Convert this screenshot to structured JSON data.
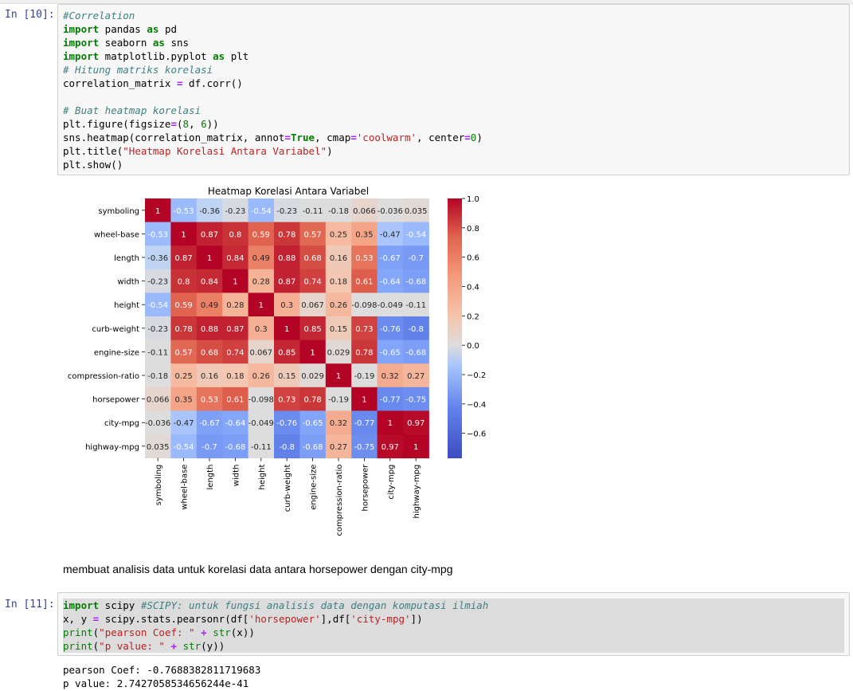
{
  "cells": [
    {
      "prompt": "In [10]:",
      "lines": [
        [
          {
            "t": "#Correlation",
            "c": "cm"
          }
        ],
        [
          {
            "t": "import",
            "c": "kw"
          },
          {
            "t": " pandas "
          },
          {
            "t": "as",
            "c": "kw"
          },
          {
            "t": " pd"
          }
        ],
        [
          {
            "t": "import",
            "c": "kw"
          },
          {
            "t": " seaborn "
          },
          {
            "t": "as",
            "c": "kw"
          },
          {
            "t": " sns"
          }
        ],
        [
          {
            "t": "import",
            "c": "kw"
          },
          {
            "t": " matplotlib.pyplot "
          },
          {
            "t": "as",
            "c": "kw"
          },
          {
            "t": " plt"
          }
        ],
        [
          {
            "t": "# Hitung matriks korelasi",
            "c": "cm"
          }
        ],
        [
          {
            "t": "correlation_matrix "
          },
          {
            "t": "=",
            "c": "op"
          },
          {
            "t": " df.corr()"
          }
        ],
        [],
        [
          {
            "t": "# Buat heatmap korelasi",
            "c": "cm"
          }
        ],
        [
          {
            "t": "plt.figure(figsize"
          },
          {
            "t": "=",
            "c": "op"
          },
          {
            "t": "("
          },
          {
            "t": "8",
            "c": "nm"
          },
          {
            "t": ", "
          },
          {
            "t": "6",
            "c": "nm"
          },
          {
            "t": "))"
          }
        ],
        [
          {
            "t": "sns.heatmap(correlation_matrix, annot"
          },
          {
            "t": "=",
            "c": "op"
          },
          {
            "t": "True",
            "c": "kw"
          },
          {
            "t": ", cmap"
          },
          {
            "t": "=",
            "c": "op"
          },
          {
            "t": "'coolwarm'",
            "c": "st"
          },
          {
            "t": ", center"
          },
          {
            "t": "=",
            "c": "op"
          },
          {
            "t": "0",
            "c": "nm"
          },
          {
            "t": ")"
          }
        ],
        [
          {
            "t": "plt.title("
          },
          {
            "t": "\"Heatmap Korelasi Antara Variabel\"",
            "c": "st"
          },
          {
            "t": ")"
          }
        ],
        [
          {
            "t": "plt.show()"
          }
        ]
      ]
    },
    {
      "prompt": "In [11]:",
      "lines": [
        [
          {
            "t": "import",
            "c": "kw"
          },
          {
            "t": " scipy "
          },
          {
            "t": "#SCIPY: untuk fungsi analisis data dengan komputasi ilmiah",
            "c": "cm"
          }
        ],
        [
          {
            "t": "x, y "
          },
          {
            "t": "=",
            "c": "op"
          },
          {
            "t": " scipy.stats.pearsonr(df["
          },
          {
            "t": "'horsepower'",
            "c": "st"
          },
          {
            "t": "],df["
          },
          {
            "t": "'city-mpg'",
            "c": "st"
          },
          {
            "t": "])"
          }
        ],
        [
          {
            "t": "print",
            "c": "nm"
          },
          {
            "t": "("
          },
          {
            "t": "\"pearson Coef: \"",
            "c": "st"
          },
          {
            "t": " "
          },
          {
            "t": "+",
            "c": "op"
          },
          {
            "t": " "
          },
          {
            "t": "str",
            "c": "nm"
          },
          {
            "t": "(x))"
          }
        ],
        [
          {
            "t": "print",
            "c": "nm"
          },
          {
            "t": "("
          },
          {
            "t": "\"p value: \"",
            "c": "st"
          },
          {
            "t": " "
          },
          {
            "t": "+",
            "c": "op"
          },
          {
            "t": " "
          },
          {
            "t": "str",
            "c": "nm"
          },
          {
            "t": "(y))"
          }
        ]
      ]
    }
  ],
  "markdown": "membuat analisis data untuk korelasi data antara horsepower dengan city-mpg",
  "output": {
    "line1": "pearson Coef: -0.7688382811719683",
    "line2": "p value: 2.7427058534656244e-41"
  },
  "chart_data": {
    "type": "heatmap",
    "title": "Heatmap Korelasi Antara Variabel",
    "colormap": "coolwarm",
    "center": 0,
    "colorbar_ticks": [
      "1.0",
      "0.8",
      "0.6",
      "0.4",
      "0.2",
      "0.0",
      "−0.2",
      "−0.4",
      "−0.6"
    ],
    "colorbar_range": [
      -0.77,
      1.0
    ],
    "variables": [
      "symboling",
      "wheel-base",
      "length",
      "width",
      "height",
      "curb-weight",
      "engine-size",
      "compression-ratio",
      "horsepower",
      "city-mpg",
      "highway-mpg"
    ],
    "annotations": [
      [
        "1",
        "-0.53",
        "-0.36",
        "-0.23",
        "-0.54",
        "-0.23",
        "-0.11",
        "-0.18",
        "0.066",
        "-0.036",
        "0.035"
      ],
      [
        "-0.53",
        "1",
        "0.87",
        "0.8",
        "0.59",
        "0.78",
        "0.57",
        "0.25",
        "0.35",
        "-0.47",
        "-0.54"
      ],
      [
        "-0.36",
        "0.87",
        "1",
        "0.84",
        "0.49",
        "0.88",
        "0.68",
        "0.16",
        "0.53",
        "-0.67",
        "-0.7"
      ],
      [
        "-0.23",
        "0.8",
        "0.84",
        "1",
        "0.28",
        "0.87",
        "0.74",
        "0.18",
        "0.61",
        "-0.64",
        "-0.68"
      ],
      [
        "-0.54",
        "0.59",
        "0.49",
        "0.28",
        "1",
        "0.3",
        "0.067",
        "0.26",
        "-0.098",
        "-0.049",
        "-0.11"
      ],
      [
        "-0.23",
        "0.78",
        "0.88",
        "0.87",
        "0.3",
        "1",
        "0.85",
        "0.15",
        "0.73",
        "-0.76",
        "-0.8"
      ],
      [
        "-0.11",
        "0.57",
        "0.68",
        "0.74",
        "0.067",
        "0.85",
        "1",
        "0.029",
        "0.78",
        "-0.65",
        "-0.68"
      ],
      [
        "-0.18",
        "0.25",
        "0.16",
        "0.18",
        "0.26",
        "0.15",
        "0.029",
        "1",
        "-0.19",
        "0.32",
        "0.27"
      ],
      [
        "0.066",
        "0.35",
        "0.53",
        "0.61",
        "-0.098",
        "0.73",
        "0.78",
        "-0.19",
        "1",
        "-0.77",
        "-0.75"
      ],
      [
        "-0.036",
        "-0.47",
        "-0.67",
        "-0.64",
        "-0.049",
        "-0.76",
        "-0.65",
        "0.32",
        "-0.77",
        "1",
        "0.97"
      ],
      [
        "0.035",
        "-0.54",
        "-0.7",
        "-0.68",
        "-0.11",
        "-0.8",
        "-0.68",
        "0.27",
        "-0.75",
        "0.97",
        "1"
      ]
    ]
  }
}
